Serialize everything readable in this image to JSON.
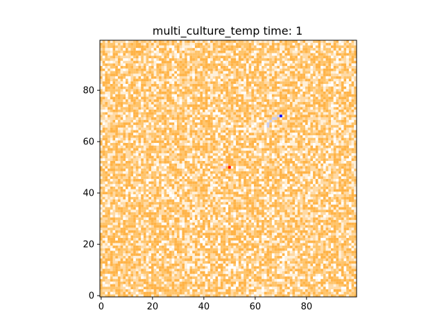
{
  "chart_data": {
    "type": "heatmap",
    "title": "multi_culture_temp time: 1",
    "xlabel": "",
    "ylabel": "",
    "grid_size": [
      100,
      100
    ],
    "xlim": [
      -0.5,
      99.5
    ],
    "ylim": [
      -0.5,
      99.5
    ],
    "xticks": [
      0,
      20,
      40,
      60,
      80
    ],
    "yticks": [
      0,
      20,
      40,
      60,
      80
    ],
    "grid": false,
    "legend": "none",
    "background_pattern": "random temperature noise across the whole grid",
    "base_colormap": [
      "#ffffff",
      "#fff0d9",
      "#ffd9a3",
      "#ffc46b",
      "#ffb347"
    ],
    "cultures": [
      {
        "color": "#ff0000",
        "cells": [
          {
            "x": 50,
            "y": 50
          }
        ],
        "halo_color": "#f8d6d6",
        "halo_cells": [
          {
            "x": 47,
            "y": 50
          },
          {
            "x": 48,
            "y": 50
          },
          {
            "x": 49,
            "y": 51
          }
        ]
      },
      {
        "color": "#0000ff",
        "cells": [
          {
            "x": 70,
            "y": 70
          }
        ],
        "halo_color": "#c9cdf0",
        "halo_cells": [
          {
            "x": 65,
            "y": 67
          },
          {
            "x": 66,
            "y": 68
          },
          {
            "x": 67,
            "y": 69
          },
          {
            "x": 68,
            "y": 69
          },
          {
            "x": 69,
            "y": 70
          },
          {
            "x": 65,
            "y": 66
          }
        ]
      }
    ]
  }
}
